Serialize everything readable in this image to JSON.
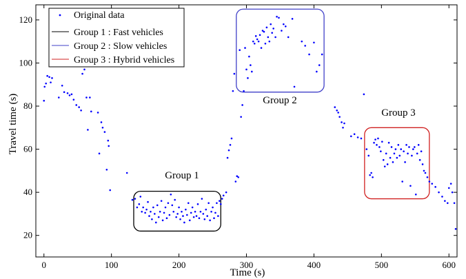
{
  "chart_data": {
    "type": "scatter",
    "xlabel": "Time (s)",
    "ylabel": "Travel time (s)",
    "xlim": [
      -12,
      612
    ],
    "ylim": [
      10,
      127
    ],
    "xticks": [
      0,
      100,
      200,
      300,
      400,
      500,
      600
    ],
    "yticks": [
      20,
      40,
      60,
      80,
      100,
      120
    ],
    "grid": false,
    "legend_position": "top-left",
    "legend": [
      {
        "label": "Original data",
        "marker": "dot",
        "color": "#0000ff"
      },
      {
        "label": "Group 1 : Fast vehicles",
        "marker": "line",
        "color": "#000000"
      },
      {
        "label": "Group 2 : Slow vehicles",
        "marker": "line",
        "color": "#4040c8"
      },
      {
        "label": "Group 3 : Hybrid vehicles",
        "marker": "line",
        "color": "#d02020"
      }
    ],
    "groups": [
      {
        "label": "Group 1",
        "color": "#000000",
        "x_range": [
          133,
          262
        ],
        "y_range": [
          22,
          40.5
        ]
      },
      {
        "label": "Group 2",
        "color": "#4040c8",
        "x_range": [
          285,
          415
        ],
        "y_range": [
          86.5,
          125
        ]
      },
      {
        "label": "Group 3",
        "color": "#d02020",
        "x_range": [
          475,
          571
        ],
        "y_range": [
          37,
          70
        ]
      }
    ],
    "series": [
      {
        "name": "Original data",
        "color": "#0000ff",
        "points": [
          [
            0,
            82.5
          ],
          [
            1,
            89
          ],
          [
            3,
            90.5
          ],
          [
            5,
            94
          ],
          [
            8,
            93.5
          ],
          [
            10,
            91
          ],
          [
            12,
            93
          ],
          [
            22,
            84
          ],
          [
            27,
            89.5
          ],
          [
            30,
            86.5
          ],
          [
            35,
            86
          ],
          [
            38,
            85
          ],
          [
            41,
            85.5
          ],
          [
            44,
            83
          ],
          [
            48,
            80.5
          ],
          [
            52,
            79.5
          ],
          [
            55,
            78
          ],
          [
            57,
            95
          ],
          [
            60,
            97
          ],
          [
            63,
            84
          ],
          [
            65,
            69
          ],
          [
            68,
            84
          ],
          [
            70,
            77.5
          ],
          [
            80,
            77
          ],
          [
            82,
            58
          ],
          [
            85,
            72.5
          ],
          [
            87,
            70
          ],
          [
            90,
            68
          ],
          [
            93,
            50.5
          ],
          [
            95,
            64
          ],
          [
            96,
            61.5
          ],
          [
            98,
            41
          ],
          [
            123,
            49
          ],
          [
            131,
            36.5
          ],
          [
            135,
            37
          ],
          [
            138,
            33
          ],
          [
            141,
            34.5
          ],
          [
            143,
            38
          ],
          [
            145,
            31
          ],
          [
            147,
            33
          ],
          [
            150,
            30.5
          ],
          [
            152,
            32
          ],
          [
            154,
            35.5
          ],
          [
            156,
            29
          ],
          [
            158,
            31
          ],
          [
            160,
            27.5
          ],
          [
            162,
            33
          ],
          [
            164,
            30
          ],
          [
            166,
            26
          ],
          [
            168,
            34
          ],
          [
            170,
            28.5
          ],
          [
            172,
            31
          ],
          [
            174,
            36
          ],
          [
            176,
            27
          ],
          [
            178,
            30.5
          ],
          [
            180,
            33
          ],
          [
            182,
            28
          ],
          [
            184,
            35
          ],
          [
            186,
            29.5
          ],
          [
            188,
            39
          ],
          [
            190,
            34
          ],
          [
            192,
            31
          ],
          [
            194,
            36.5
          ],
          [
            196,
            28.5
          ],
          [
            198,
            30
          ],
          [
            200,
            33
          ],
          [
            202,
            27.5
          ],
          [
            204,
            31
          ],
          [
            206,
            29
          ],
          [
            208,
            26
          ],
          [
            210,
            32
          ],
          [
            212,
            29.5
          ],
          [
            214,
            35
          ],
          [
            216,
            27
          ],
          [
            218,
            30.5
          ],
          [
            220,
            33
          ],
          [
            222,
            28.5
          ],
          [
            224,
            31
          ],
          [
            226,
            29
          ],
          [
            228,
            34.5
          ],
          [
            230,
            28
          ],
          [
            232,
            31
          ],
          [
            234,
            37
          ],
          [
            236,
            30
          ],
          [
            238,
            27.5
          ],
          [
            240,
            32
          ],
          [
            242,
            29
          ],
          [
            244,
            35
          ],
          [
            246,
            27
          ],
          [
            248,
            31
          ],
          [
            250,
            33
          ],
          [
            252,
            28
          ],
          [
            254,
            30.5
          ],
          [
            256,
            35
          ],
          [
            258,
            29
          ],
          [
            260,
            36
          ],
          [
            262,
            34.5
          ],
          [
            264,
            37
          ],
          [
            266,
            38.5
          ],
          [
            270,
            40
          ],
          [
            272,
            56
          ],
          [
            274,
            59.5
          ],
          [
            276,
            62
          ],
          [
            278,
            65
          ],
          [
            280,
            87
          ],
          [
            282,
            95
          ],
          [
            284,
            45
          ],
          [
            286,
            47.5
          ],
          [
            288,
            47
          ],
          [
            290,
            106
          ],
          [
            292,
            75
          ],
          [
            294,
            80.5
          ],
          [
            296,
            87
          ],
          [
            298,
            107
          ],
          [
            300,
            97
          ],
          [
            302,
            93
          ],
          [
            304,
            103
          ],
          [
            306,
            99
          ],
          [
            308,
            96
          ],
          [
            310,
            110
          ],
          [
            312,
            109
          ],
          [
            314,
            112.5
          ],
          [
            316,
            111
          ],
          [
            318,
            110
          ],
          [
            320,
            113
          ],
          [
            322,
            107
          ],
          [
            324,
            115
          ],
          [
            326,
            114.5
          ],
          [
            328,
            109
          ],
          [
            330,
            116.5
          ],
          [
            332,
            112
          ],
          [
            334,
            110
          ],
          [
            336,
            118
          ],
          [
            338,
            114
          ],
          [
            340,
            116
          ],
          [
            343,
            112
          ],
          [
            345,
            121.5
          ],
          [
            348,
            121
          ],
          [
            352,
            115
          ],
          [
            355,
            118
          ],
          [
            358,
            117
          ],
          [
            362,
            112
          ],
          [
            368,
            120.5
          ],
          [
            371,
            89
          ],
          [
            382,
            110
          ],
          [
            387,
            108
          ],
          [
            393,
            104
          ],
          [
            400,
            109.5
          ],
          [
            404,
            96
          ],
          [
            408,
            99
          ],
          [
            412,
            104
          ],
          [
            431,
            79.5
          ],
          [
            434,
            78
          ],
          [
            436,
            77
          ],
          [
            438,
            75
          ],
          [
            441,
            72.5
          ],
          [
            443,
            70
          ],
          [
            445,
            72
          ],
          [
            455,
            66
          ],
          [
            460,
            67
          ],
          [
            465,
            65.5
          ],
          [
            470,
            65
          ],
          [
            474,
            85.5
          ],
          [
            478,
            60
          ],
          [
            481,
            57
          ],
          [
            483,
            48
          ],
          [
            485,
            49
          ],
          [
            487,
            47
          ],
          [
            489,
            63
          ],
          [
            491,
            64.5
          ],
          [
            493,
            62
          ],
          [
            495,
            65
          ],
          [
            497,
            61
          ],
          [
            499,
            59
          ],
          [
            501,
            63.5
          ],
          [
            503,
            55
          ],
          [
            505,
            52
          ],
          [
            507,
            58
          ],
          [
            509,
            53
          ],
          [
            511,
            63
          ],
          [
            513,
            56
          ],
          [
            515,
            61
          ],
          [
            517,
            54
          ],
          [
            519,
            58
          ],
          [
            521,
            60
          ],
          [
            523,
            56
          ],
          [
            525,
            62
          ],
          [
            527,
            57
          ],
          [
            529,
            60
          ],
          [
            531,
            45
          ],
          [
            533,
            59
          ],
          [
            535,
            54
          ],
          [
            537,
            62
          ],
          [
            539,
            58
          ],
          [
            541,
            61
          ],
          [
            543,
            43
          ],
          [
            545,
            57
          ],
          [
            547,
            60
          ],
          [
            549,
            61
          ],
          [
            551,
            39
          ],
          [
            553,
            58
          ],
          [
            555,
            62
          ],
          [
            557,
            55
          ],
          [
            559,
            59
          ],
          [
            561,
            53
          ],
          [
            563,
            50
          ],
          [
            565,
            49
          ],
          [
            568,
            47
          ],
          [
            571,
            45
          ],
          [
            575,
            44
          ],
          [
            580,
            42.5
          ],
          [
            585,
            40
          ],
          [
            590,
            38
          ],
          [
            594,
            36
          ],
          [
            598,
            35
          ],
          [
            600,
            42
          ],
          [
            603,
            44
          ],
          [
            605,
            40
          ],
          [
            608,
            35
          ],
          [
            610,
            23
          ]
        ]
      }
    ]
  }
}
